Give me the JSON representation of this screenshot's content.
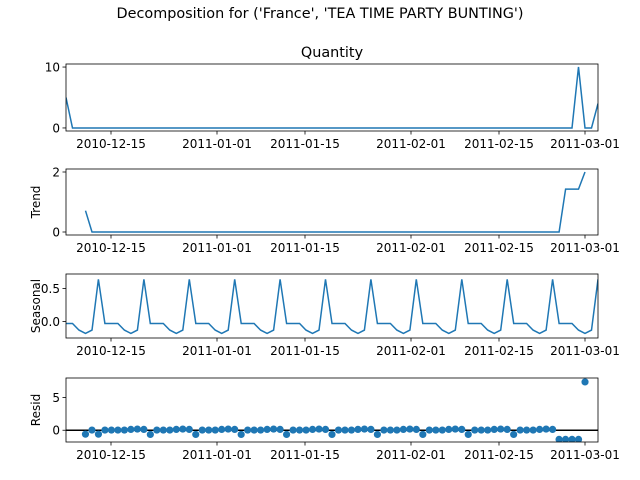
{
  "suptitle": "Decomposition for ('France', 'TEA TIME PARTY BUNTING')",
  "colors": {
    "series": "#1f77b4",
    "zero_line": "#000000",
    "axes": "#000000"
  },
  "chart_data": [
    {
      "type": "line",
      "title": "Quantity",
      "ylabel": "",
      "xlabel": "",
      "x_start": "2010-12-08",
      "x_ticks": [
        "2010-12-15",
        "2011-01-01",
        "2011-01-15",
        "2011-02-01",
        "2011-02-15",
        "2011-03-01"
      ],
      "y_ticks": [
        "0",
        "10"
      ],
      "ylim": [
        -0.5,
        10.5
      ],
      "xlim": [
        0,
        82
      ],
      "x": [
        0,
        1,
        2,
        3,
        4,
        5,
        6,
        7,
        8,
        9,
        10,
        11,
        12,
        13,
        14,
        15,
        16,
        17,
        18,
        19,
        20,
        21,
        22,
        23,
        24,
        25,
        26,
        27,
        28,
        29,
        30,
        31,
        32,
        33,
        34,
        35,
        36,
        37,
        38,
        39,
        40,
        41,
        42,
        43,
        44,
        45,
        46,
        47,
        48,
        49,
        50,
        51,
        52,
        53,
        54,
        55,
        56,
        57,
        58,
        59,
        60,
        61,
        62,
        63,
        64,
        65,
        66,
        67,
        67,
        68,
        69,
        70,
        71,
        72,
        73,
        74,
        75,
        76,
        77,
        78,
        79,
        80,
        81,
        82
      ],
      "y": [
        5,
        0,
        0,
        0,
        0,
        0,
        0,
        0,
        0,
        0,
        0,
        0,
        0,
        0,
        0,
        0,
        0,
        0,
        0,
        0,
        0,
        0,
        0,
        0,
        0,
        0,
        0,
        0,
        0,
        0,
        0,
        0,
        0,
        0,
        0,
        0,
        0,
        0,
        0,
        0,
        0,
        0,
        0,
        0,
        0,
        0,
        0,
        0,
        0,
        0,
        0,
        0,
        0,
        0,
        0,
        0,
        0,
        0,
        0,
        0,
        0,
        0,
        0,
        0,
        0,
        0,
        0,
        0,
        0,
        0,
        0,
        0,
        0,
        0,
        0,
        0,
        0,
        0,
        0,
        0,
        10,
        0,
        0,
        4
      ]
    },
    {
      "type": "line",
      "title": "",
      "ylabel": "Trend",
      "xlabel": "",
      "x_ticks": [
        "2010-12-15",
        "2011-01-01",
        "2011-01-15",
        "2011-02-01",
        "2011-02-15",
        "2011-03-01"
      ],
      "y_ticks": [
        "0",
        "2"
      ],
      "ylim": [
        -0.1,
        2.1
      ],
      "xlim": [
        0,
        82
      ],
      "x": [
        3,
        4,
        5,
        6,
        7,
        8,
        9,
        10,
        11,
        12,
        13,
        14,
        15,
        16,
        17,
        18,
        19,
        20,
        21,
        22,
        23,
        24,
        25,
        26,
        27,
        28,
        29,
        30,
        31,
        32,
        33,
        34,
        35,
        36,
        37,
        38,
        39,
        40,
        41,
        42,
        43,
        44,
        45,
        46,
        47,
        48,
        49,
        50,
        51,
        52,
        53,
        54,
        55,
        56,
        57,
        58,
        59,
        60,
        61,
        62,
        63,
        64,
        65,
        66,
        67,
        68,
        69,
        70,
        71,
        72,
        73,
        74,
        75,
        76,
        77,
        78,
        79,
        80
      ],
      "y": [
        0.71,
        0,
        0,
        0,
        0,
        0,
        0,
        0,
        0,
        0,
        0,
        0,
        0,
        0,
        0,
        0,
        0,
        0,
        0,
        0,
        0,
        0,
        0,
        0,
        0,
        0,
        0,
        0,
        0,
        0,
        0,
        0,
        0,
        0,
        0,
        0,
        0,
        0,
        0,
        0,
        0,
        0,
        0,
        0,
        0,
        0,
        0,
        0,
        0,
        0,
        0,
        0,
        0,
        0,
        0,
        0,
        0,
        0,
        0,
        0,
        0,
        0,
        0,
        0,
        0,
        0,
        0,
        0,
        0,
        0,
        0,
        0,
        0,
        0,
        1.43,
        1.43,
        1.43,
        2.0
      ]
    },
    {
      "type": "line",
      "title": "",
      "ylabel": "Seasonal",
      "xlabel": "",
      "x_ticks": [
        "2010-12-15",
        "2011-01-01",
        "2011-01-15",
        "2011-02-01",
        "2011-02-15",
        "2011-03-01"
      ],
      "y_ticks": [
        "0.5",
        "0.0"
      ],
      "ylim": [
        -0.25,
        0.72
      ],
      "xlim": [
        0,
        82
      ],
      "period_pattern": [
        -0.03,
        -0.03,
        -0.13,
        -0.18,
        -0.13,
        0.64,
        -0.03
      ],
      "x_count": 83
    },
    {
      "type": "scatter",
      "title": "",
      "ylabel": "Resid",
      "xlabel": "",
      "x_ticks": [
        "2010-12-15",
        "2011-01-01",
        "2011-01-15",
        "2011-02-01",
        "2011-02-15",
        "2011-03-01"
      ],
      "y_ticks": [
        "5",
        "0"
      ],
      "ylim": [
        -1.8,
        8.0
      ],
      "xlim": [
        0,
        82
      ],
      "zero_line": 0,
      "x": [
        3,
        4,
        5,
        6,
        7,
        8,
        9,
        10,
        11,
        12,
        13,
        14,
        15,
        16,
        17,
        18,
        19,
        20,
        21,
        22,
        23,
        24,
        25,
        26,
        27,
        28,
        29,
        30,
        31,
        32,
        33,
        34,
        35,
        36,
        37,
        38,
        39,
        40,
        41,
        42,
        43,
        44,
        45,
        46,
        47,
        48,
        49,
        50,
        51,
        52,
        53,
        54,
        55,
        56,
        57,
        58,
        59,
        60,
        61,
        62,
        63,
        64,
        65,
        66,
        67,
        68,
        69,
        70,
        71,
        72,
        73,
        74,
        75,
        76,
        77,
        78,
        79,
        80
      ],
      "y": [
        -0.6,
        0.03,
        -0.6,
        0.03,
        0.03,
        0.03,
        0.03,
        0.13,
        0.18,
        0.13,
        -0.64,
        0.03,
        0.03,
        0.03,
        0.13,
        0.18,
        0.13,
        -0.64,
        0.03,
        0.03,
        0.03,
        0.13,
        0.18,
        0.13,
        -0.64,
        0.03,
        0.03,
        0.03,
        0.13,
        0.18,
        0.13,
        -0.64,
        0.03,
        0.03,
        0.03,
        0.13,
        0.18,
        0.13,
        -0.64,
        0.03,
        0.03,
        0.03,
        0.13,
        0.18,
        0.13,
        -0.64,
        0.03,
        0.03,
        0.03,
        0.13,
        0.18,
        0.13,
        -0.64,
        0.03,
        0.03,
        0.03,
        0.13,
        0.18,
        0.13,
        -0.64,
        0.03,
        0.03,
        0.03,
        0.13,
        0.18,
        0.13,
        -0.64,
        0.03,
        0.03,
        0.03,
        0.13,
        0.18,
        0.13,
        -1.4,
        -1.4,
        -1.4,
        -1.4,
        7.4
      ]
    }
  ]
}
